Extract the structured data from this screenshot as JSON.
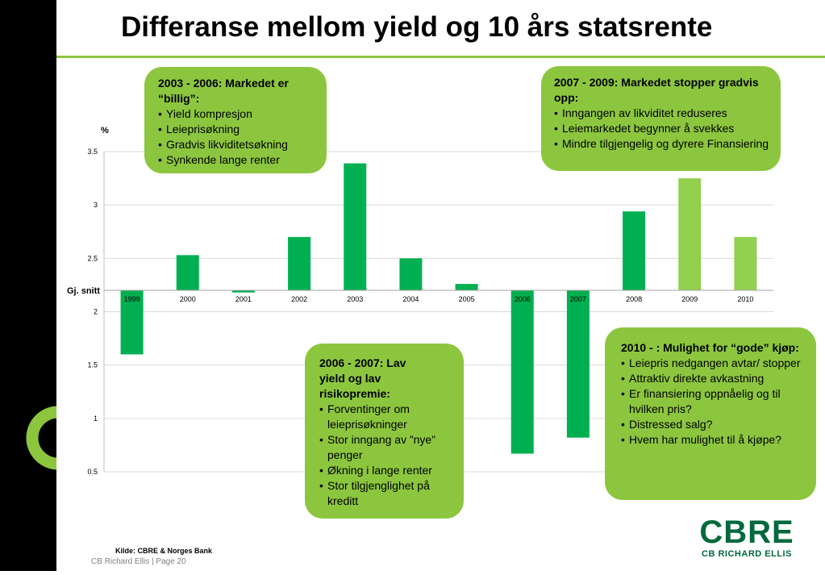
{
  "slide": {
    "title": "Differanse mellom yield og 10 års statsrente",
    "source": "Kilde: CBRE & Norges Bank",
    "footer": "CB Richard Ellis | Page 20",
    "logo_main": "CBRE",
    "logo_sub": "CB RICHARD ELLIS"
  },
  "annotations": [
    {
      "head": "2003 - 2006: Markedet er “billig”:",
      "bullets": [
        "Yield kompresjon",
        "Leieprisøkning",
        "Gradvis likviditetsøkning",
        "Synkende lange renter"
      ]
    },
    {
      "head": "2007 - 2009: Markedet stopper gradvis opp:",
      "bullets": [
        "Inngangen av likviditet reduseres",
        "Leiemarkedet begynner å svekkes",
        "Mindre tilgjengelig og dyrere Finansiering"
      ]
    },
    {
      "head": "2006 - 2007: Lav yield og lav risikopremie:",
      "bullets": [
        "Forventinger om leieprisøkninger",
        "Stor inngang av ”nye” penger",
        "Økning i lange renter",
        "Stor tilgjenglighet på kreditt"
      ]
    },
    {
      "head": "2010 - : Mulighet for “gode” kjøp:",
      "bullets": [
        "Leiepris nedgangen avtar/ stopper",
        "Attraktiv direkte avkastning",
        "Er finansiering oppnåelig og til hvilken pris?",
        "Distressed salg?",
        "Hvem har mulighet til å kjøpe?"
      ]
    }
  ],
  "chart_data": {
    "type": "bar",
    "ylabel": "%",
    "ylim": [
      0.5,
      3.5
    ],
    "yticks": [
      "0.5",
      "1",
      "1.5",
      "2",
      "2.5",
      "3",
      "3.5"
    ],
    "baseline": 2.2,
    "baseline_label": "Gj. snitt",
    "grid": true,
    "categories": [
      "1999",
      "2000",
      "2001",
      "2002",
      "2003",
      "2004",
      "2005",
      "2006",
      "2007",
      "2008",
      "2009",
      "2010"
    ],
    "values": [
      1.6,
      2.53,
      2.18,
      2.7,
      3.39,
      2.5,
      2.26,
      0.67,
      0.82,
      2.94,
      3.25,
      2.7
    ],
    "colors": [
      "#00B050",
      "#00B050",
      "#00B050",
      "#00B050",
      "#00B050",
      "#00B050",
      "#00B050",
      "#00B050",
      "#00B050",
      "#00B050",
      "#92D050",
      "#92D050"
    ]
  }
}
